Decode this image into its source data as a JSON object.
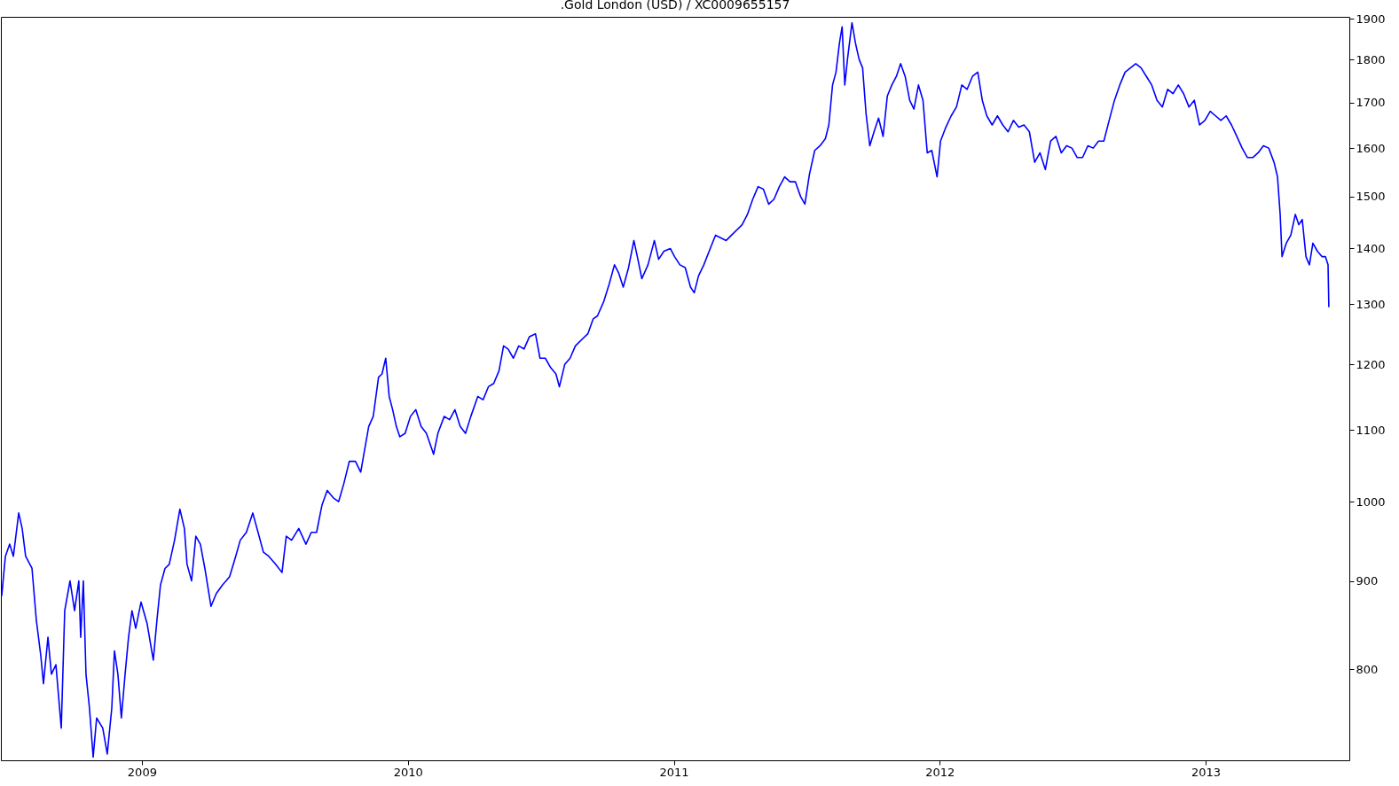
{
  "chart_data": {
    "type": "line",
    "title": ".Gold London (USD) / XC0009655157",
    "log": "y",
    "grid": false,
    "xlim": [
      2008.47,
      2013.54
    ],
    "xticks": [
      2009,
      2010,
      2011,
      2012,
      2013
    ],
    "ylim": [
      709,
      1905
    ],
    "yticks": [
      800,
      900,
      1000,
      1100,
      1200,
      1300,
      1400,
      1500,
      1600,
      1700,
      1800,
      1900
    ],
    "x": [
      2008.473,
      2008.487,
      2008.503,
      2008.517,
      2008.537,
      2008.55,
      2008.563,
      2008.587,
      2008.603,
      2008.62,
      2008.63,
      2008.647,
      2008.66,
      2008.677,
      2008.697,
      2008.71,
      2008.73,
      2008.747,
      2008.763,
      2008.77,
      2008.78,
      2008.79,
      2008.803,
      2008.817,
      2008.83,
      2008.853,
      2008.87,
      2008.887,
      2008.897,
      2008.91,
      2008.923,
      2008.937,
      2008.95,
      2008.963,
      2008.977,
      2008.997,
      2009.02,
      2009.043,
      2009.057,
      2009.07,
      2009.087,
      2009.103,
      2009.123,
      2009.143,
      2009.16,
      2009.17,
      2009.187,
      2009.203,
      2009.22,
      2009.237,
      2009.26,
      2009.28,
      2009.303,
      2009.33,
      2009.353,
      2009.37,
      2009.393,
      2009.417,
      2009.437,
      2009.457,
      2009.477,
      2009.503,
      2009.527,
      2009.543,
      2009.563,
      2009.59,
      2009.617,
      2009.637,
      2009.657,
      2009.677,
      2009.697,
      2009.72,
      2009.74,
      2009.76,
      2009.78,
      2009.803,
      2009.823,
      2009.837,
      2009.853,
      2009.87,
      2009.89,
      2009.903,
      2009.917,
      2009.93,
      2009.943,
      2009.957,
      2009.97,
      2009.99,
      2010.01,
      2010.03,
      2010.05,
      2010.07,
      2010.097,
      2010.113,
      2010.137,
      2010.157,
      2010.177,
      2010.197,
      2010.217,
      2010.237,
      2010.263,
      2010.283,
      2010.303,
      2010.323,
      2010.343,
      2010.36,
      2010.377,
      2010.397,
      2010.417,
      2010.437,
      2010.457,
      2010.48,
      2010.497,
      2010.517,
      2010.537,
      2010.557,
      2010.57,
      2010.59,
      2010.61,
      2010.63,
      2010.653,
      2010.677,
      2010.697,
      2010.713,
      2010.737,
      2010.757,
      2010.777,
      2010.793,
      2010.81,
      2010.83,
      2010.85,
      2010.863,
      2010.88,
      2010.903,
      2010.927,
      2010.943,
      2010.963,
      2010.987,
      2011.003,
      2011.023,
      2011.043,
      2011.063,
      2011.077,
      2011.093,
      2011.113,
      2011.137,
      2011.157,
      2011.177,
      2011.197,
      2011.217,
      2011.237,
      2011.257,
      2011.277,
      2011.297,
      2011.317,
      2011.337,
      2011.357,
      2011.377,
      2011.397,
      2011.417,
      2011.437,
      2011.457,
      2011.477,
      2011.493,
      2011.51,
      2011.53,
      2011.55,
      2011.57,
      2011.583,
      2011.597,
      2011.61,
      2011.623,
      2011.633,
      2011.643,
      2011.653,
      2011.67,
      2011.683,
      2011.697,
      2011.71,
      2011.723,
      2011.737,
      2011.753,
      2011.77,
      2011.787,
      2011.803,
      2011.82,
      2011.837,
      2011.853,
      2011.87,
      2011.887,
      2011.903,
      2011.92,
      2011.937,
      2011.953,
      2011.97,
      2011.99,
      2012.003,
      2012.023,
      2012.043,
      2012.063,
      2012.083,
      2012.103,
      2012.123,
      2012.143,
      2012.16,
      2012.177,
      2012.197,
      2012.217,
      2012.237,
      2012.257,
      2012.277,
      2012.297,
      2012.317,
      2012.337,
      2012.357,
      2012.377,
      2012.397,
      2012.417,
      2012.437,
      2012.457,
      2012.477,
      2012.497,
      2012.517,
      2012.537,
      2012.557,
      2012.577,
      2012.597,
      2012.617,
      2012.637,
      2012.657,
      2012.677,
      2012.697,
      2012.717,
      2012.737,
      2012.757,
      2012.777,
      2012.797,
      2012.817,
      2012.837,
      2012.857,
      2012.877,
      2012.897,
      2012.917,
      2012.937,
      2012.957,
      2012.977,
      2012.997,
      2013.017,
      2013.037,
      2013.057,
      2013.077,
      2013.097,
      2013.117,
      2013.137,
      2013.157,
      2013.177,
      2013.197,
      2013.217,
      2013.237,
      2013.257,
      2013.27,
      2013.28,
      2013.287,
      2013.303,
      2013.32,
      2013.337,
      2013.35,
      2013.363,
      2013.377,
      2013.39,
      2013.403,
      2013.42,
      2013.437,
      2013.45,
      2013.46,
      2013.463
    ],
    "series": [
      {
        "color": "#0000ff",
        "values": [
          882,
          930,
          945,
          930,
          985,
          965,
          930,
          915,
          855,
          815,
          785,
          835,
          795,
          805,
          740,
          865,
          900,
          865,
          900,
          835,
          900,
          795,
          760,
          712,
          750,
          740,
          715,
          760,
          820,
          795,
          750,
          795,
          835,
          865,
          845,
          875,
          850,
          810,
          855,
          895,
          915,
          920,
          950,
          990,
          965,
          920,
          900,
          955,
          945,
          915,
          870,
          885,
          895,
          905,
          930,
          950,
          960,
          985,
          960,
          935,
          930,
          920,
          910,
          955,
          950,
          965,
          945,
          960,
          960,
          995,
          1015,
          1005,
          1000,
          1025,
          1055,
          1055,
          1040,
          1070,
          1105,
          1120,
          1180,
          1185,
          1210,
          1150,
          1130,
          1105,
          1090,
          1095,
          1120,
          1130,
          1105,
          1095,
          1065,
          1095,
          1120,
          1115,
          1130,
          1105,
          1095,
          1120,
          1150,
          1145,
          1165,
          1170,
          1190,
          1230,
          1225,
          1210,
          1230,
          1225,
          1245,
          1250,
          1210,
          1210,
          1195,
          1185,
          1165,
          1200,
          1210,
          1230,
          1240,
          1250,
          1275,
          1280,
          1305,
          1335,
          1370,
          1355,
          1330,
          1365,
          1415,
          1385,
          1345,
          1370,
          1415,
          1380,
          1395,
          1400,
          1385,
          1370,
          1365,
          1330,
          1320,
          1350,
          1370,
          1400,
          1425,
          1420,
          1415,
          1425,
          1435,
          1445,
          1465,
          1495,
          1520,
          1515,
          1485,
          1495,
          1520,
          1540,
          1530,
          1530,
          1500,
          1485,
          1545,
          1595,
          1605,
          1620,
          1650,
          1740,
          1770,
          1840,
          1880,
          1740,
          1800,
          1890,
          1840,
          1800,
          1780,
          1675,
          1605,
          1635,
          1665,
          1625,
          1715,
          1740,
          1760,
          1790,
          1760,
          1705,
          1685,
          1740,
          1705,
          1590,
          1595,
          1540,
          1615,
          1645,
          1670,
          1690,
          1740,
          1730,
          1760,
          1770,
          1705,
          1670,
          1650,
          1670,
          1650,
          1635,
          1660,
          1645,
          1650,
          1635,
          1570,
          1590,
          1555,
          1615,
          1625,
          1590,
          1605,
          1600,
          1580,
          1580,
          1605,
          1600,
          1615,
          1615,
          1660,
          1705,
          1740,
          1770,
          1780,
          1790,
          1780,
          1760,
          1740,
          1705,
          1690,
          1730,
          1720,
          1740,
          1720,
          1690,
          1705,
          1650,
          1660,
          1680,
          1670,
          1660,
          1670,
          1650,
          1625,
          1600,
          1580,
          1580,
          1590,
          1605,
          1600,
          1570,
          1540,
          1465,
          1385,
          1410,
          1425,
          1465,
          1445,
          1455,
          1385,
          1370,
          1410,
          1395,
          1385,
          1385,
          1370,
          1295
        ]
      }
    ]
  }
}
